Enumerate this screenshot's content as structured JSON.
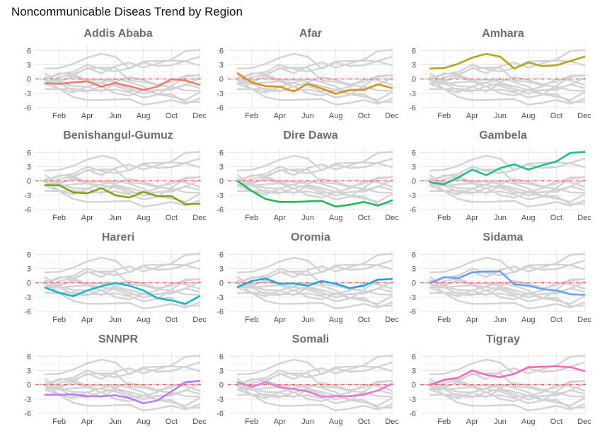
{
  "title": "Noncommunicable Diseas Trend by Region",
  "chart_data": {
    "type": "line",
    "layout": "small-multiples",
    "facet_grid": [
      4,
      3
    ],
    "title": "Noncommunicable Diseas Trend by Region",
    "xlabel": "",
    "ylabel": "",
    "x": [
      1,
      2,
      3,
      4,
      5,
      6,
      7,
      8,
      9,
      10,
      11,
      12
    ],
    "x_ticks": [
      2,
      4,
      6,
      8,
      10,
      12
    ],
    "x_tick_labels": [
      "Feb",
      "Apr",
      "Jun",
      "Aug",
      "Oct",
      "Dec"
    ],
    "xlim": [
      0.3,
      12.1
    ],
    "y_ticks": [
      6,
      3,
      0,
      -3,
      -6
    ],
    "ylim": [
      -6,
      6.8
    ],
    "grid": true,
    "reference_line": {
      "y": 0,
      "style": "dash-dot",
      "color": "#e8443a"
    },
    "background_color": "#d3d3d3",
    "series": [
      {
        "name": "Addis Ababa",
        "color": "#f07b6b",
        "values": [
          -0.9,
          -1.0,
          -0.7,
          -0.5,
          -1.6,
          -0.8,
          -1.5,
          -2.3,
          -1.6,
          0.0,
          -0.3,
          -1.2
        ]
      },
      {
        "name": "Afar",
        "color": "#d98f1b",
        "values": [
          1.2,
          -0.7,
          -1.5,
          -1.6,
          -2.6,
          -1.0,
          -2.0,
          -3.1,
          -2.3,
          -2.3,
          -1.1,
          -1.9
        ]
      },
      {
        "name": "Amhara",
        "color": "#b5a41e",
        "values": [
          2.2,
          2.3,
          3.2,
          4.5,
          5.3,
          4.7,
          2.2,
          3.5,
          2.7,
          2.9,
          3.8,
          4.7
        ]
      },
      {
        "name": "Benishangul-Gumuz",
        "color": "#7ea61c",
        "values": [
          -0.9,
          -0.9,
          -2.4,
          -2.6,
          -1.5,
          -3.0,
          -3.5,
          -2.3,
          -3.2,
          -3.2,
          -4.9,
          -4.8
        ]
      },
      {
        "name": "Dire Dawa",
        "color": "#1fb85a",
        "values": [
          0.0,
          -2.1,
          -3.8,
          -4.4,
          -4.4,
          -4.3,
          -4.2,
          -5.4,
          -5.0,
          -4.4,
          -5.2,
          -4.1
        ]
      },
      {
        "name": "Gambela",
        "color": "#1ebe8c",
        "values": [
          -0.3,
          -0.7,
          0.7,
          2.4,
          1.2,
          2.7,
          3.5,
          2.4,
          3.3,
          4.1,
          5.9,
          6.1
        ]
      },
      {
        "name": "Hareri",
        "color": "#1ab7c8",
        "values": [
          -1.0,
          -2.1,
          -2.8,
          -1.6,
          -0.7,
          0.0,
          -0.6,
          -1.6,
          -3.2,
          -3.7,
          -4.4,
          -2.8
        ]
      },
      {
        "name": "Oromia",
        "color": "#1aa9d8",
        "values": [
          -0.9,
          0.4,
          0.9,
          -0.2,
          -0.1,
          -0.6,
          0.4,
          -0.2,
          -1.1,
          -0.6,
          0.7,
          0.8
        ]
      },
      {
        "name": "Sidama",
        "color": "#6aa0f2",
        "values": [
          0.0,
          1.2,
          1.0,
          2.2,
          2.4,
          2.4,
          -0.3,
          -0.6,
          -1.3,
          -1.6,
          -2.4,
          -2.5
        ]
      },
      {
        "name": "SNNPR",
        "color": "#b77ef0",
        "values": [
          -2.1,
          -2.1,
          -2.0,
          -2.4,
          -2.4,
          -2.2,
          -2.8,
          -3.9,
          -3.3,
          -1.4,
          0.5,
          0.8
        ]
      },
      {
        "name": "Somali",
        "color": "#e07ae0",
        "values": [
          0.5,
          -0.4,
          0.5,
          -0.5,
          -0.9,
          -1.4,
          -2.5,
          -2.4,
          -2.4,
          -2.0,
          -1.2,
          0.2
        ]
      },
      {
        "name": "Tigray",
        "color": "#f06ab8",
        "values": [
          0.0,
          1.0,
          1.5,
          3.0,
          2.1,
          1.6,
          2.3,
          3.7,
          3.8,
          3.9,
          3.7,
          2.9
        ]
      }
    ]
  }
}
